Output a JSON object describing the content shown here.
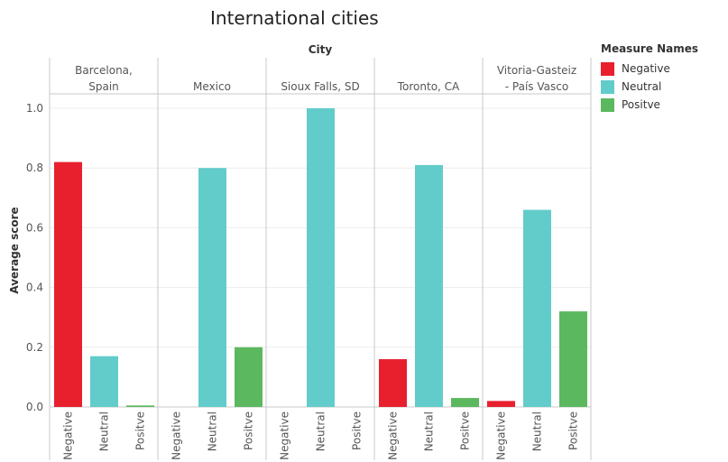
{
  "chart_data": {
    "type": "bar",
    "title": "International cities",
    "column_header": "City",
    "ylabel": "Average score",
    "ylim": [
      0,
      1.05
    ],
    "yticks": [
      "0.0",
      "0.2",
      "0.4",
      "0.6",
      "0.8",
      "1.0"
    ],
    "ytick_values": [
      0,
      0.2,
      0.4,
      0.6,
      0.8,
      1.0
    ],
    "measures": [
      "Negative",
      "Neutral",
      "Positve"
    ],
    "colors": {
      "Negative": "#e8202e",
      "Neutral": "#62ccca",
      "Positve": "#5cb85f"
    },
    "legend": {
      "title": "Measure Names",
      "position": "right"
    },
    "grid": true,
    "panels": [
      {
        "city": [
          "Barcelona,",
          "Spain"
        ],
        "values": {
          "Negative": 0.82,
          "Neutral": 0.17,
          "Positve": 0.005
        }
      },
      {
        "city": [
          "Mexico"
        ],
        "values": {
          "Negative": null,
          "Neutral": 0.8,
          "Positve": 0.2
        }
      },
      {
        "city": [
          "Sioux Falls, SD"
        ],
        "values": {
          "Negative": null,
          "Neutral": 1.0,
          "Positve": null
        }
      },
      {
        "city": [
          "Toronto, CA"
        ],
        "values": {
          "Negative": 0.16,
          "Neutral": 0.81,
          "Positve": 0.03
        }
      },
      {
        "city": [
          "Vitoria-Gasteiz",
          "- País Vasco"
        ],
        "values": {
          "Negative": 0.02,
          "Neutral": 0.66,
          "Positve": 0.32
        }
      }
    ]
  }
}
